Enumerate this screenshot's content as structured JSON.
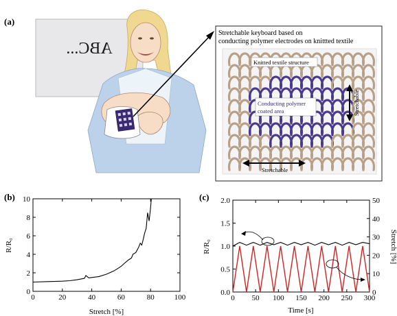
{
  "panel_a": {
    "label": "(a)",
    "screen_text": "ABC...",
    "inset_title_line1": "Stretchable keyboard based on",
    "inset_title_line2": "conducting polymer electrodes on knittted textile",
    "knit_label": "Knitted textile structure",
    "coated_label_line1": "Conducting polymer",
    "coated_label_line2": "coated area",
    "stretch_vertical": "Stretchable",
    "stretch_horizontal": "Stretchable",
    "colors": {
      "yarn": "#b8a088",
      "coated": "#4a3a8c",
      "sleeve": "#bcd2ea",
      "hair": "#f0d890"
    }
  },
  "chart_data": [
    {
      "type": "line",
      "panel_label": "(b)",
      "xlabel": "Stretch [%]",
      "ylabel": "R/R₀",
      "xlim": [
        0,
        100
      ],
      "ylim": [
        0,
        10
      ],
      "xticks": [
        0,
        20,
        40,
        60,
        80,
        100
      ],
      "yticks": [
        0,
        2,
        4,
        6,
        8,
        10
      ],
      "series": [
        {
          "color": "#000000",
          "x": [
            0,
            10,
            20,
            25,
            30,
            35,
            36,
            38,
            40,
            45,
            50,
            55,
            58,
            60,
            62,
            65,
            67,
            68,
            70,
            72,
            73,
            74,
            75,
            76,
            77,
            78,
            79,
            80,
            80.5
          ],
          "y": [
            1.0,
            1.05,
            1.1,
            1.15,
            1.25,
            1.4,
            1.7,
            1.45,
            1.5,
            1.6,
            1.85,
            2.2,
            2.5,
            2.7,
            3.0,
            3.4,
            3.6,
            4.0,
            4.2,
            4.8,
            5.2,
            5.0,
            5.6,
            6.3,
            6.8,
            8.5,
            7.6,
            9.0,
            10.0
          ]
        }
      ]
    },
    {
      "type": "line",
      "panel_label": "(c)",
      "xlabel": "Time [s]",
      "ylabel": "R/R₀",
      "y2label": "Stretch [%]",
      "xlim": [
        0,
        300
      ],
      "ylim": [
        0,
        2.0
      ],
      "y2lim": [
        0,
        50
      ],
      "xticks": [
        0,
        50,
        100,
        150,
        200,
        250,
        300
      ],
      "yticks": [
        0.0,
        0.5,
        1.0,
        1.5,
        2.0
      ],
      "y2ticks": [
        0,
        10,
        20,
        30,
        40,
        50
      ],
      "series": [
        {
          "axis": "left",
          "color": "#000000",
          "x": [
            0,
            15,
            30,
            45,
            60,
            75,
            90,
            105,
            120,
            135,
            150,
            165,
            180,
            195,
            210,
            225,
            240,
            255,
            270,
            285,
            300
          ],
          "y": [
            1.0,
            1.08,
            1.02,
            1.08,
            1.02,
            1.08,
            1.03,
            1.08,
            1.02,
            1.08,
            1.03,
            1.08,
            1.02,
            1.08,
            1.03,
            1.08,
            1.02,
            1.08,
            1.03,
            1.08,
            1.05
          ]
        },
        {
          "axis": "right",
          "color": "#d42020",
          "x": [
            0,
            15,
            30,
            45,
            60,
            75,
            90,
            105,
            120,
            135,
            150,
            165,
            180,
            195,
            210,
            225,
            240,
            255,
            270,
            285,
            300
          ],
          "y": [
            0,
            25,
            0,
            25,
            0,
            25,
            0,
            25,
            0,
            25,
            0,
            25,
            0,
            25,
            0,
            25,
            0,
            25,
            0,
            25,
            0
          ]
        }
      ]
    }
  ]
}
